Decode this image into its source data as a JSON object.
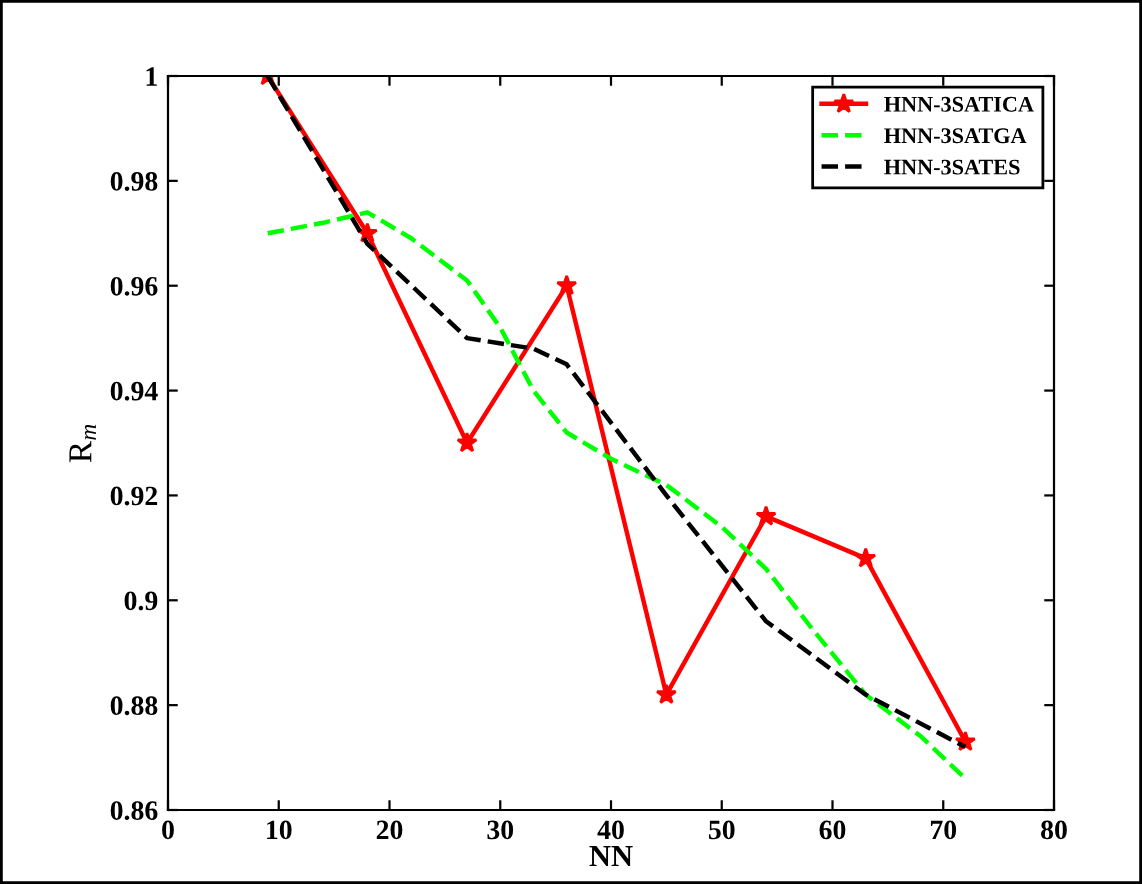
{
  "chart_data": {
    "type": "line",
    "xlabel": "NN",
    "ylabel": "R$_{m}$",
    "xlim": [
      0,
      80
    ],
    "xticks": [
      0,
      10,
      20,
      30,
      40,
      50,
      60,
      70,
      80
    ],
    "ylim": [
      0.86,
      1
    ],
    "yticks": [
      0.86,
      0.88,
      0.9,
      0.92,
      0.94,
      0.96,
      0.98,
      1
    ],
    "grid": false,
    "legend": "top right",
    "series": [
      {
        "name": "HNN-3SATICA",
        "color": "#ff0000",
        "marker": "star",
        "line_style": "solid",
        "x": [
          9,
          18,
          27,
          36,
          45,
          54,
          63,
          72
        ],
        "values": [
          1.0,
          0.97,
          0.93,
          0.96,
          0.882,
          0.916,
          0.908,
          0.873
        ]
      },
      {
        "name": "HNN-3SATGA",
        "color": "#00ff00",
        "marker": "none",
        "line_style": "dashed",
        "x": [
          9,
          14,
          18,
          22,
          27,
          30,
          33,
          36,
          40,
          45,
          50,
          54,
          58,
          63,
          68,
          72
        ],
        "values": [
          0.97,
          0.972,
          0.974,
          0.969,
          0.961,
          0.952,
          0.94,
          0.932,
          0.927,
          0.922,
          0.914,
          0.906,
          0.895,
          0.882,
          0.874,
          0.866
        ]
      },
      {
        "name": "HNN-3SATES",
        "color": "#000000",
        "marker": "none",
        "line_style": "dashed",
        "x": [
          9,
          18,
          27,
          33,
          36,
          45,
          54,
          63,
          72
        ],
        "values": [
          1.0,
          0.968,
          0.95,
          0.948,
          0.945,
          0.92,
          0.896,
          0.882,
          0.872
        ]
      }
    ]
  }
}
